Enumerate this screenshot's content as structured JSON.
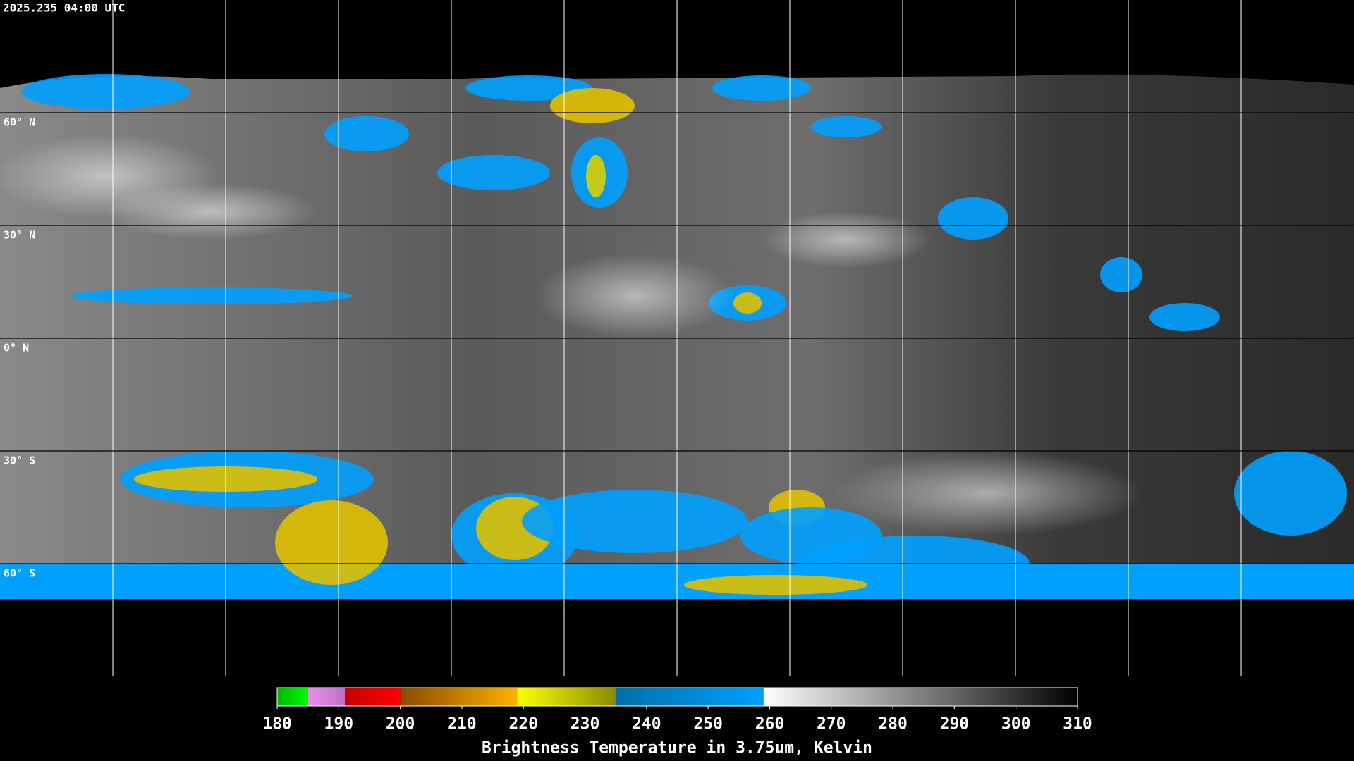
{
  "header": {
    "title": "2025.235 04:00 UTC"
  },
  "map": {
    "lat_lines": [
      {
        "value": 60,
        "label": "60° N"
      },
      {
        "value": 30,
        "label": "30° N"
      },
      {
        "value": 0,
        "label": "0° N"
      },
      {
        "value": -30,
        "label": "30° S"
      },
      {
        "value": -60,
        "label": "60° S"
      }
    ]
  },
  "colorbar": {
    "range": [
      180,
      310
    ],
    "ticks": [
      180,
      190,
      200,
      210,
      220,
      230,
      240,
      250,
      260,
      270,
      280,
      290,
      300,
      310
    ],
    "label": "Brightness Temperature in 3.75um, Kelvin",
    "segments": [
      {
        "from": 180,
        "to": 185,
        "colors": [
          "#00b400",
          "#00ff00"
        ]
      },
      {
        "from": 185,
        "to": 191,
        "colors": [
          "#e890e8",
          "#c070c8"
        ]
      },
      {
        "from": 191,
        "to": 200,
        "colors": [
          "#c80000",
          "#ff0000"
        ]
      },
      {
        "from": 200,
        "to": 219,
        "colors": [
          "#8a4a00",
          "#ffb000"
        ]
      },
      {
        "from": 219,
        "to": 235,
        "colors": [
          "#ffff00",
          "#8a8a00"
        ]
      },
      {
        "from": 235,
        "to": 259,
        "colors": [
          "#0070a8",
          "#00a0ff"
        ]
      },
      {
        "from": 259,
        "to": 310,
        "colors": [
          "#ffffff",
          "#000000"
        ]
      }
    ]
  }
}
